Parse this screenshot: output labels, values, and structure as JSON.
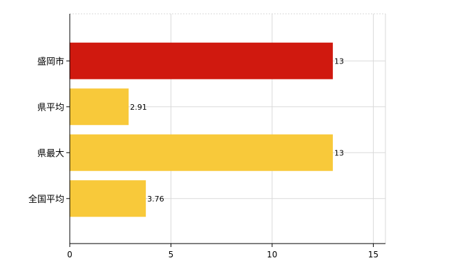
{
  "chart_data": {
    "type": "bar",
    "orientation": "horizontal",
    "categories": [
      "盛岡市",
      "県平均",
      "県最大",
      "全国平均"
    ],
    "values": [
      13,
      2.91,
      13,
      3.76
    ],
    "data_labels": [
      "13",
      "2.91",
      "13",
      "3.76"
    ],
    "bar_colors": [
      "#d0190f",
      "#f8c93a",
      "#f8c93a",
      "#f8c93a"
    ],
    "xlim": [
      0,
      15.6
    ],
    "xticks": [
      0,
      5,
      10,
      15
    ],
    "xtick_labels": [
      "0",
      "5",
      "10",
      "15"
    ],
    "grid": true,
    "legend": "none",
    "title": "",
    "xlabel": "",
    "ylabel": ""
  }
}
